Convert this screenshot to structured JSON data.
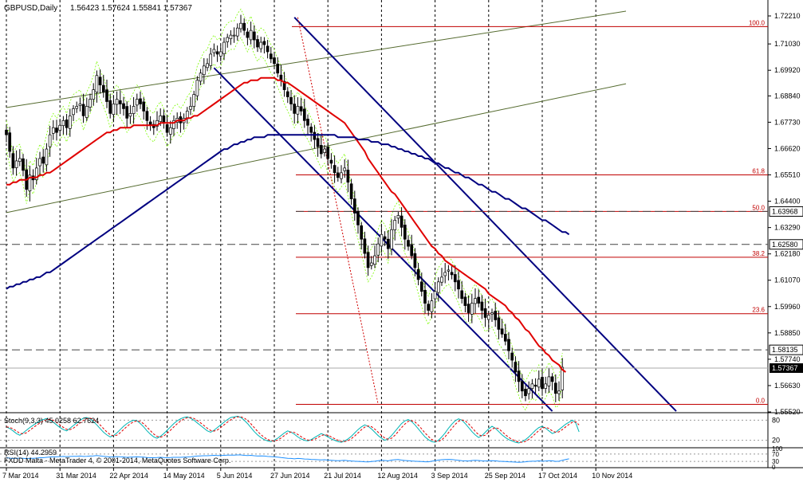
{
  "header": {
    "symbol_label": "GBPUSD,Daily",
    "ohlc_label": "1.56423 1.57624 1.55841 1.57367"
  },
  "footer": {
    "broker_label": "FXDD Malta - MetaTrader 4, © 2001-2014, MetaQuotes Software Corp."
  },
  "colors": {
    "background": "#ffffff",
    "grid": "#000000",
    "candle": "#000000",
    "ma_fast": "#e00000",
    "ma_slow": "#000080",
    "channel": "#000080",
    "fib": "#c00000",
    "stoch_main": "#00b5b5",
    "stoch_signal": "#e00000",
    "rsi": "#1e90ff",
    "envelope": "#7cfc00"
  },
  "chart_data": {
    "type": "candlestick",
    "title": "GBPUSD,Daily",
    "ohlc": {
      "open": 1.56423,
      "high": 1.57624,
      "low": 1.55841,
      "close": 1.57367
    },
    "ylim": [
      1.5552,
      1.7221
    ],
    "price_ticks": [
      1.7221,
      1.7103,
      1.6992,
      1.6884,
      1.6773,
      1.6662,
      1.6551,
      1.644,
      1.6329,
      1.6218,
      1.6107,
      1.5996,
      1.5885,
      1.5774,
      1.5663,
      1.5552
    ],
    "price_tick_labels": [
      "1.72210",
      "1.71030",
      "1.69920",
      "1.68840",
      "1.67730",
      "1.66620",
      "1.65510",
      "1.64400",
      "1.63290",
      "1.62180",
      "1.61070",
      "1.59960",
      "1.58850",
      "1.57740",
      "1.56630",
      "1.55520"
    ],
    "x_labels": [
      "7 Mar 2014",
      "31 Mar 2014",
      "22 Apr 2014",
      "14 May 2014",
      "5 Jun 2014",
      "27 Jun 2014",
      "21 Jul 2014",
      "12 Aug 2014",
      "3 Sep 2014",
      "25 Sep 2014",
      "17 Oct 2014",
      "10 Nov 2014"
    ],
    "x_label_bars": [
      0,
      16,
      32,
      48,
      64,
      80,
      96,
      112,
      128,
      144,
      160,
      176
    ],
    "closes": [
      1.672,
      1.665,
      1.658,
      1.661,
      1.662,
      1.657,
      1.649,
      1.655,
      1.653,
      1.658,
      1.662,
      1.66,
      1.666,
      1.672,
      1.675,
      1.673,
      1.676,
      1.678,
      1.675,
      1.68,
      1.683,
      1.684,
      1.685,
      1.68,
      1.684,
      1.687,
      1.691,
      1.697,
      1.693,
      1.69,
      1.686,
      1.681,
      1.685,
      1.687,
      1.685,
      1.683,
      1.679,
      1.681,
      1.684,
      1.687,
      1.685,
      1.682,
      1.678,
      1.676,
      1.675,
      1.678,
      1.68,
      1.677,
      1.673,
      1.675,
      1.678,
      1.679,
      1.677,
      1.679,
      1.682,
      1.684,
      1.689,
      1.695,
      1.698,
      1.701,
      1.702,
      1.706,
      1.708,
      1.706,
      1.707,
      1.711,
      1.713,
      1.714,
      1.714,
      1.717,
      1.719,
      1.716,
      1.713,
      1.716,
      1.712,
      1.709,
      1.711,
      1.71,
      1.707,
      1.704,
      1.702,
      1.698,
      1.695,
      1.691,
      1.688,
      1.685,
      1.681,
      1.684,
      1.682,
      1.678,
      1.676,
      1.673,
      1.67,
      1.667,
      1.664,
      1.666,
      1.662,
      1.66,
      1.656,
      1.654,
      1.656,
      1.658,
      1.652,
      1.645,
      1.639,
      1.634,
      1.628,
      1.622,
      1.616,
      1.618,
      1.621,
      1.626,
      1.63,
      1.628,
      1.624,
      1.632,
      1.636,
      1.638,
      1.633,
      1.628,
      1.625,
      1.621,
      1.616,
      1.611,
      1.606,
      1.601,
      1.598,
      1.602,
      1.606,
      1.61,
      1.612,
      1.614,
      1.615,
      1.613,
      1.61,
      1.607,
      1.603,
      1.6,
      1.597,
      1.601,
      1.603,
      1.601,
      1.598,
      1.595,
      1.596,
      1.597,
      1.594,
      1.59,
      1.588,
      1.585,
      1.581,
      1.577,
      1.572,
      1.568,
      1.564,
      1.562,
      1.565,
      1.567,
      1.566,
      1.569,
      1.565,
      1.567,
      1.57,
      1.568,
      1.563,
      1.564,
      1.574
    ],
    "series": [
      {
        "name": "MA fast",
        "values": [
          1.651,
          1.651,
          1.652,
          1.652,
          1.653,
          1.653,
          1.653,
          1.654,
          1.654,
          1.654,
          1.655,
          1.655,
          1.656,
          1.656,
          1.657,
          1.658,
          1.659,
          1.66,
          1.661,
          1.662,
          1.663,
          1.664,
          1.665,
          1.666,
          1.667,
          1.668,
          1.669,
          1.67,
          1.671,
          1.672,
          1.673,
          1.673,
          1.674,
          1.674,
          1.675,
          1.675,
          1.675,
          1.675,
          1.676,
          1.676,
          1.676,
          1.676,
          1.676,
          1.676,
          1.676,
          1.676,
          1.677,
          1.677,
          1.677,
          1.677,
          1.677,
          1.678,
          1.678,
          1.678,
          1.679,
          1.679,
          1.68,
          1.68,
          1.681,
          1.682,
          1.683,
          1.684,
          1.685,
          1.686,
          1.687,
          1.688,
          1.689,
          1.69,
          1.691,
          1.692,
          1.693,
          1.694,
          1.694,
          1.695,
          1.695,
          1.695,
          1.696,
          1.696,
          1.696,
          1.696,
          1.696,
          1.695,
          1.695,
          1.694,
          1.694,
          1.693,
          1.692,
          1.691,
          1.69,
          1.689,
          1.688,
          1.687,
          1.686,
          1.685,
          1.684,
          1.683,
          1.682,
          1.681,
          1.68,
          1.679,
          1.678,
          1.677,
          1.675,
          1.673,
          1.671,
          1.669,
          1.667,
          1.665,
          1.662,
          1.66,
          1.658,
          1.656,
          1.654,
          1.652,
          1.65,
          1.648,
          1.647,
          1.645,
          1.643,
          1.641,
          1.639,
          1.637,
          1.635,
          1.633,
          1.631,
          1.629,
          1.627,
          1.625,
          1.624,
          1.622,
          1.621,
          1.619,
          1.618,
          1.617,
          1.616,
          1.615,
          1.614,
          1.613,
          1.612,
          1.611,
          1.61,
          1.609,
          1.608,
          1.607,
          1.605,
          1.604,
          1.603,
          1.602,
          1.601,
          1.6,
          1.598,
          1.597,
          1.595,
          1.594,
          1.592,
          1.59,
          1.589,
          1.587,
          1.585,
          1.583,
          1.582,
          1.58,
          1.579,
          1.577,
          1.576,
          1.575,
          1.573,
          1.572
        ]
      },
      {
        "name": "MA slow",
        "values": [
          1.607,
          1.608,
          1.608,
          1.609,
          1.609,
          1.61,
          1.61,
          1.611,
          1.611,
          1.612,
          1.612,
          1.613,
          1.614,
          1.614,
          1.615,
          1.616,
          1.617,
          1.618,
          1.619,
          1.62,
          1.621,
          1.622,
          1.623,
          1.624,
          1.625,
          1.626,
          1.627,
          1.628,
          1.629,
          1.63,
          1.631,
          1.632,
          1.633,
          1.634,
          1.635,
          1.636,
          1.637,
          1.638,
          1.639,
          1.64,
          1.641,
          1.642,
          1.643,
          1.644,
          1.645,
          1.646,
          1.647,
          1.648,
          1.649,
          1.65,
          1.651,
          1.652,
          1.653,
          1.654,
          1.655,
          1.656,
          1.657,
          1.658,
          1.659,
          1.66,
          1.661,
          1.662,
          1.663,
          1.664,
          1.665,
          1.666,
          1.666,
          1.667,
          1.668,
          1.668,
          1.669,
          1.669,
          1.67,
          1.67,
          1.671,
          1.671,
          1.671,
          1.671,
          1.672,
          1.672,
          1.672,
          1.672,
          1.672,
          1.672,
          1.672,
          1.672,
          1.672,
          1.672,
          1.672,
          1.672,
          1.672,
          1.672,
          1.672,
          1.672,
          1.672,
          1.672,
          1.672,
          1.672,
          1.672,
          1.671,
          1.671,
          1.671,
          1.671,
          1.671,
          1.671,
          1.67,
          1.67,
          1.67,
          1.67,
          1.669,
          1.669,
          1.669,
          1.668,
          1.668,
          1.668,
          1.667,
          1.667,
          1.666,
          1.666,
          1.665,
          1.665,
          1.664,
          1.664,
          1.663,
          1.663,
          1.662,
          1.662,
          1.661,
          1.66,
          1.66,
          1.659,
          1.658,
          1.658,
          1.657,
          1.656,
          1.656,
          1.655,
          1.654,
          1.654,
          1.653,
          1.652,
          1.651,
          1.651,
          1.65,
          1.649,
          1.648,
          1.648,
          1.647,
          1.646,
          1.645,
          1.645,
          1.644,
          1.643,
          1.642,
          1.641,
          1.641,
          1.64,
          1.639,
          1.638,
          1.637,
          1.636,
          1.636,
          1.635,
          1.634,
          1.633,
          1.632,
          1.631,
          1.631,
          1.63
        ]
      }
    ],
    "fib_levels": [
      {
        "label": "100.0",
        "price": 1.7176
      },
      {
        "label": "61.8",
        "price": 1.6551
      },
      {
        "label": "50.0",
        "price": 1.6397
      },
      {
        "label": "38.2",
        "price": 1.6204
      },
      {
        "label": "23.6",
        "price": 1.5966
      },
      {
        "label": "0.0",
        "price": 1.5584
      }
    ],
    "horizontal_levels": [
      {
        "label": "1.63968",
        "price": 1.63968
      },
      {
        "label": "1.62580",
        "price": 1.6258
      },
      {
        "label": "1.58135",
        "price": 1.58135
      }
    ],
    "last_price_label": "1.57367",
    "stoch": {
      "label": "Stoch(9,3,3) 45.0258 62.7624",
      "levels": [
        "80",
        "20"
      ],
      "main": [
        60,
        55,
        48,
        40,
        35,
        42,
        50,
        58,
        65,
        72,
        78,
        82,
        85,
        80,
        74,
        66,
        58,
        52,
        48,
        56,
        64,
        72,
        80,
        86,
        88,
        84,
        76,
        66,
        55,
        44,
        36,
        30,
        34,
        42,
        52,
        62,
        70,
        76,
        80,
        78,
        70,
        60,
        48,
        38,
        30,
        26,
        32,
        40,
        50,
        60,
        70,
        78,
        84,
        88,
        90,
        86,
        80,
        72,
        64,
        56,
        48,
        44,
        50,
        58,
        66,
        74,
        82,
        88,
        90,
        92,
        88,
        80,
        70,
        58,
        46,
        36,
        28,
        22,
        18,
        16,
        20,
        26,
        34,
        42,
        48,
        44,
        38,
        30,
        24,
        20,
        18,
        22,
        28,
        34,
        40,
        36,
        30,
        24,
        20,
        16,
        14,
        18,
        24,
        32,
        42,
        52,
        60,
        66,
        62,
        54,
        44,
        34,
        26,
        20,
        24,
        34,
        46,
        58,
        70,
        78,
        82,
        76,
        66,
        54,
        42,
        30,
        22,
        16,
        14,
        20,
        30,
        42,
        56,
        68,
        78,
        84,
        80,
        70,
        58,
        46,
        36,
        28,
        34,
        44,
        54,
        62,
        56,
        46,
        36,
        28,
        22,
        18,
        14,
        12,
        16,
        22,
        30,
        40,
        50,
        58,
        62,
        56,
        48,
        40,
        44,
        52,
        60,
        68,
        74,
        80,
        72,
        45
      ]
    },
    "rsi": {
      "label": "RSI(14) 44.2959",
      "levels": [
        "100",
        "70",
        "30",
        "0"
      ],
      "values": [
        50,
        48,
        46,
        47,
        48,
        47,
        45,
        47,
        47,
        48,
        50,
        50,
        52,
        54,
        55,
        55,
        56,
        57,
        56,
        57,
        58,
        58,
        59,
        57,
        58,
        59,
        60,
        62,
        60,
        58,
        56,
        54,
        55,
        56,
        55,
        54,
        52,
        53,
        54,
        55,
        54,
        53,
        51,
        50,
        50,
        51,
        52,
        51,
        50,
        51,
        52,
        52,
        52,
        53,
        54,
        55,
        57,
        59,
        60,
        61,
        61,
        62,
        63,
        62,
        62,
        63,
        64,
        64,
        64,
        65,
        65,
        63,
        62,
        63,
        61,
        59,
        60,
        59,
        57,
        56,
        55,
        53,
        51,
        49,
        47,
        46,
        44,
        46,
        45,
        43,
        42,
        41,
        40,
        39,
        38,
        39,
        37,
        36,
        35,
        34,
        35,
        36,
        34,
        32,
        31,
        30,
        29,
        28,
        27,
        29,
        31,
        34,
        36,
        35,
        33,
        37,
        39,
        40,
        37,
        35,
        34,
        32,
        31,
        30,
        29,
        28,
        28,
        31,
        34,
        37,
        39,
        40,
        41,
        40,
        38,
        36,
        34,
        33,
        32,
        35,
        36,
        35,
        33,
        32,
        33,
        34,
        33,
        31,
        30,
        29,
        28,
        27,
        26,
        25,
        26,
        28,
        30,
        31,
        31,
        33,
        31,
        32,
        34,
        33,
        30,
        31,
        36,
        40,
        44
      ]
    }
  }
}
